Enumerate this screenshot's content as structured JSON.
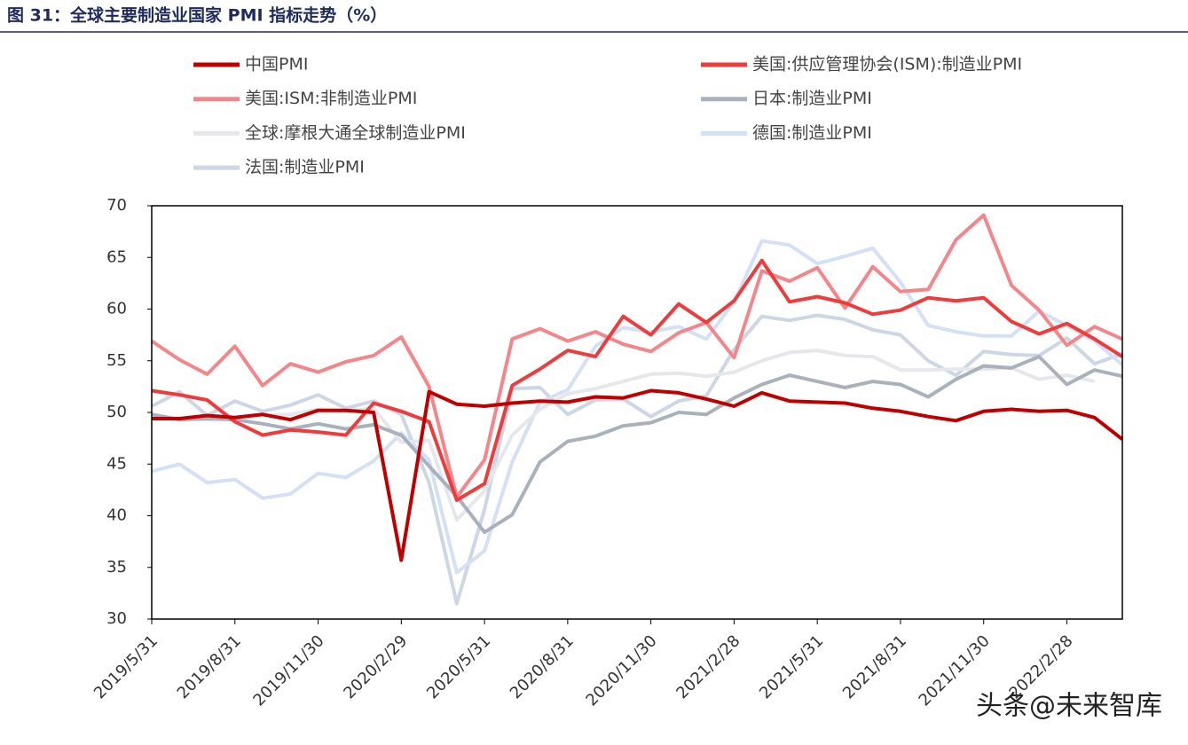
{
  "chart_data": {
    "type": "line",
    "title": "图 31：全球主要制造业国家 PMI 指标走势（%）",
    "watermark": "头条@未来智库",
    "categories": [
      "2019/5/31",
      null,
      null,
      "2019/8/31",
      null,
      null,
      "2019/11/30",
      null,
      null,
      "2020/2/29",
      null,
      null,
      "2020/5/31",
      null,
      null,
      "2020/8/31",
      null,
      null,
      "2020/11/30",
      null,
      null,
      "2021/2/28",
      null,
      null,
      "2021/5/31",
      null,
      null,
      "2021/8/31",
      null,
      null,
      "2021/11/30",
      null,
      null,
      "2022/2/28",
      null,
      null
    ],
    "ylim": [
      30,
      70
    ],
    "yticks": [
      30,
      35,
      40,
      45,
      50,
      55,
      60,
      65,
      70
    ],
    "series": [
      {
        "name": "中国PMI",
        "color": "#c00000",
        "values": [
          49.4,
          49.4,
          49.7,
          49.5,
          49.8,
          49.3,
          50.2,
          50.2,
          50.0,
          35.7,
          52.0,
          50.8,
          50.6,
          50.9,
          51.1,
          51.0,
          51.5,
          51.4,
          52.1,
          51.9,
          51.3,
          50.6,
          51.9,
          51.1,
          51.0,
          50.9,
          50.4,
          50.1,
          49.6,
          49.2,
          50.1,
          50.3,
          50.1,
          50.2,
          49.5,
          47.4
        ]
      },
      {
        "name": "美国:供应管理协会(ISM):制造业PMI",
        "color": "#ee3b3b",
        "values": [
          52.1,
          51.7,
          51.2,
          49.1,
          47.8,
          48.3,
          48.1,
          47.8,
          50.9,
          50.1,
          49.1,
          41.5,
          43.1,
          52.6,
          54.2,
          56.0,
          55.4,
          59.3,
          57.5,
          60.5,
          58.7,
          60.8,
          64.7,
          60.7,
          61.2,
          60.6,
          59.5,
          59.9,
          61.1,
          60.8,
          61.1,
          58.8,
          57.6,
          58.6,
          57.1,
          55.4
        ]
      },
      {
        "name": "美国:ISM:非制造业PMI",
        "color": "#f4868a",
        "values": [
          56.9,
          55.1,
          53.7,
          56.4,
          52.6,
          54.7,
          53.9,
          54.9,
          55.5,
          57.3,
          52.5,
          41.8,
          45.4,
          57.1,
          58.1,
          56.9,
          57.8,
          56.6,
          55.9,
          57.7,
          58.7,
          55.3,
          63.7,
          62.7,
          64.0,
          60.1,
          64.1,
          61.7,
          61.9,
          66.7,
          69.1,
          62.3,
          59.9,
          56.5,
          58.3,
          57.1
        ]
      },
      {
        "name": "日本:制造业PMI",
        "color": "#a9b1bd",
        "values": [
          49.8,
          49.3,
          49.4,
          49.3,
          48.9,
          48.4,
          48.9,
          48.4,
          48.8,
          47.8,
          44.8,
          41.9,
          38.4,
          40.1,
          45.2,
          47.2,
          47.7,
          48.7,
          49.0,
          50.0,
          49.8,
          51.4,
          52.7,
          53.6,
          53.0,
          52.4,
          53.0,
          52.7,
          51.5,
          53.2,
          54.5,
          54.3,
          55.4,
          52.7,
          54.1,
          53.5
        ]
      },
      {
        "name": "全球:摩根大通全球制造业PMI",
        "color": "#e6e7ea",
        "values": [
          49.8,
          49.4,
          49.3,
          49.5,
          49.7,
          49.8,
          50.3,
          50.1,
          50.4,
          47.1,
          47.3,
          39.6,
          42.4,
          47.8,
          50.3,
          51.8,
          52.3,
          53.0,
          53.7,
          53.8,
          53.5,
          53.9,
          55.0,
          55.8,
          56.0,
          55.5,
          55.4,
          54.1,
          54.1,
          54.2,
          54.2,
          54.3,
          53.2,
          53.6,
          53.0,
          null
        ]
      },
      {
        "name": "德国:制造业PMI",
        "color": "#d3e0f5",
        "values": [
          44.3,
          45.0,
          43.2,
          43.5,
          41.7,
          42.1,
          44.1,
          43.7,
          45.3,
          48.0,
          45.4,
          34.5,
          36.6,
          45.2,
          51.0,
          52.2,
          56.4,
          58.2,
          57.8,
          58.3,
          57.1,
          60.7,
          66.6,
          66.2,
          64.4,
          65.1,
          65.9,
          62.6,
          58.4,
          57.8,
          57.4,
          57.4,
          59.8,
          58.4,
          56.9,
          54.6
        ]
      },
      {
        "name": "法国:制造业PMI",
        "color": "#cdd6e5",
        "values": [
          50.6,
          52.0,
          49.7,
          51.1,
          50.1,
          50.7,
          51.7,
          50.4,
          51.1,
          49.8,
          43.2,
          31.5,
          40.6,
          52.3,
          52.4,
          49.8,
          51.2,
          51.3,
          49.6,
          51.1,
          51.6,
          56.1,
          59.3,
          58.9,
          59.4,
          59.0,
          58.0,
          57.5,
          55.0,
          53.6,
          55.9,
          55.6,
          55.5,
          57.2,
          54.7,
          55.7
        ]
      }
    ]
  }
}
